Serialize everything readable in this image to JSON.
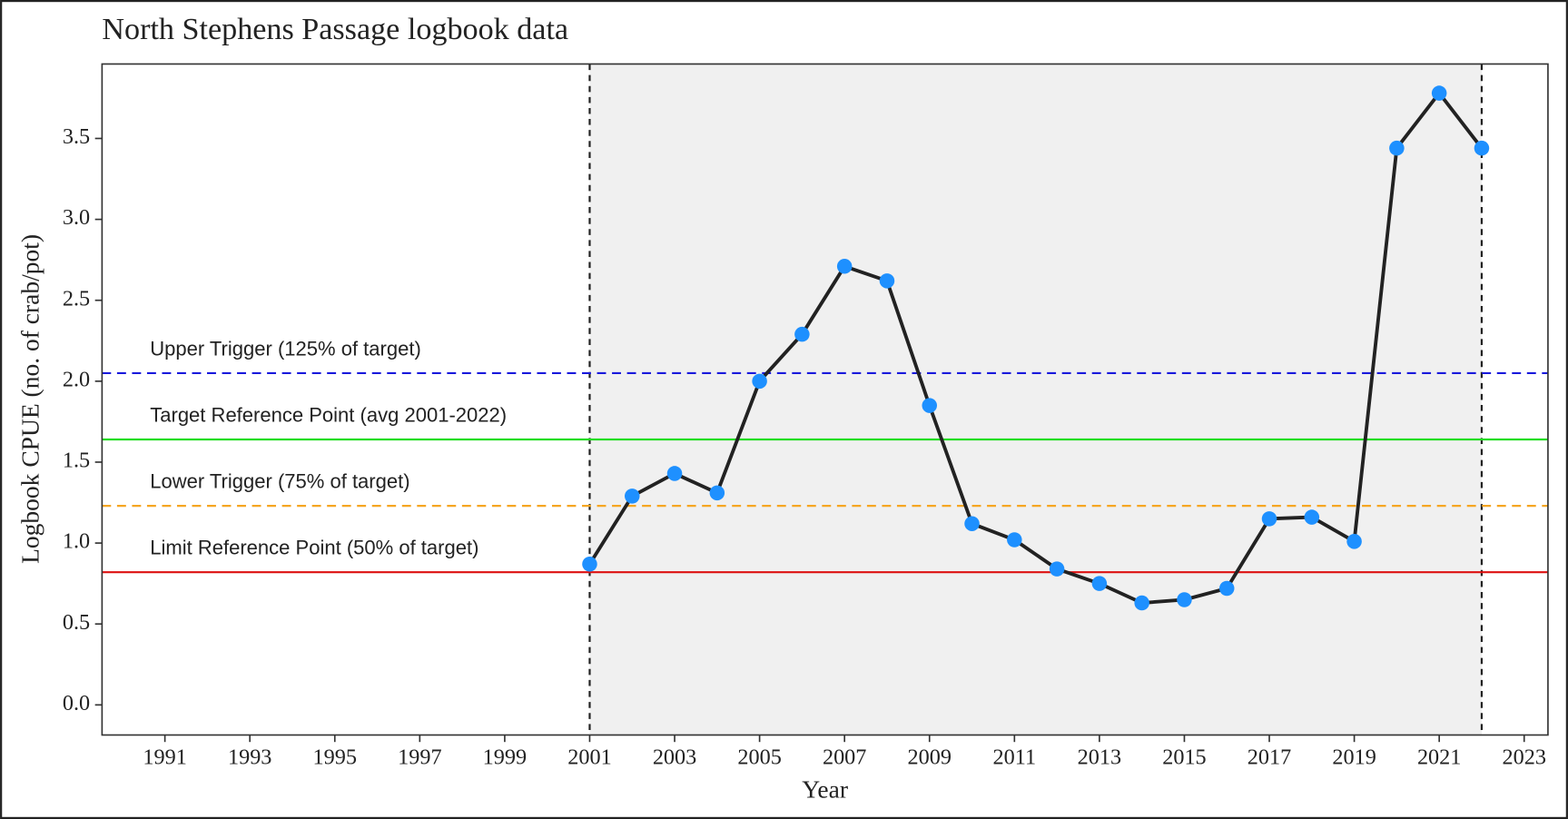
{
  "chart_data": {
    "type": "line",
    "title": "North Stephens Passage logbook data",
    "x_label": "Year",
    "y_label": "Logbook CPUE (no. of crab/pot)",
    "x": [
      2001,
      2002,
      2003,
      2004,
      2005,
      2006,
      2007,
      2008,
      2009,
      2010,
      2011,
      2012,
      2013,
      2014,
      2015,
      2016,
      2017,
      2018,
      2019,
      2020,
      2021,
      2022
    ],
    "series": [
      {
        "color": "#222222",
        "marker_color": "#1e90ff",
        "values": [
          0.87,
          1.29,
          1.43,
          1.31,
          2.0,
          2.29,
          2.71,
          2.62,
          1.85,
          1.12,
          1.02,
          0.84,
          0.75,
          0.63,
          0.65,
          0.72,
          1.15,
          1.16,
          1.01,
          3.44,
          3.78,
          3.44
        ]
      }
    ],
    "reference_lines": [
      {
        "label": "Upper Trigger (125% of target)",
        "value": 2.05,
        "color": "#1a1adc",
        "dashed": true
      },
      {
        "label": "Target Reference Point (avg 2001-2022)",
        "value": 1.64,
        "color": "#22dd22",
        "dashed": false
      },
      {
        "label": "Lower Trigger (75% of target)",
        "value": 1.23,
        "color": "#f5a623",
        "dashed": true
      },
      {
        "label": "Limit Reference Point (50% of target)",
        "value": 0.82,
        "color": "#dd1111",
        "dashed": false
      }
    ],
    "shaded_range": [
      2001,
      2022
    ],
    "shade_color": "#f0f0f0",
    "xlim": [
      1989.52,
      2023.56
    ],
    "xticks": [
      1991,
      1993,
      1995,
      1997,
      1999,
      2001,
      2003,
      2005,
      2007,
      2009,
      2011,
      2013,
      2015,
      2017,
      2019,
      2021,
      2023
    ],
    "ylim": [
      -0.186,
      3.96
    ],
    "yticks": [
      {
        "value": 0,
        "label": "0.0"
      },
      0.5,
      {
        "value": 1,
        "label": "1.0"
      },
      1.5,
      {
        "value": 2,
        "label": "2.0"
      },
      2.5,
      {
        "value": 3,
        "label": "3.0"
      },
      3.5
    ],
    "grid": false
  }
}
